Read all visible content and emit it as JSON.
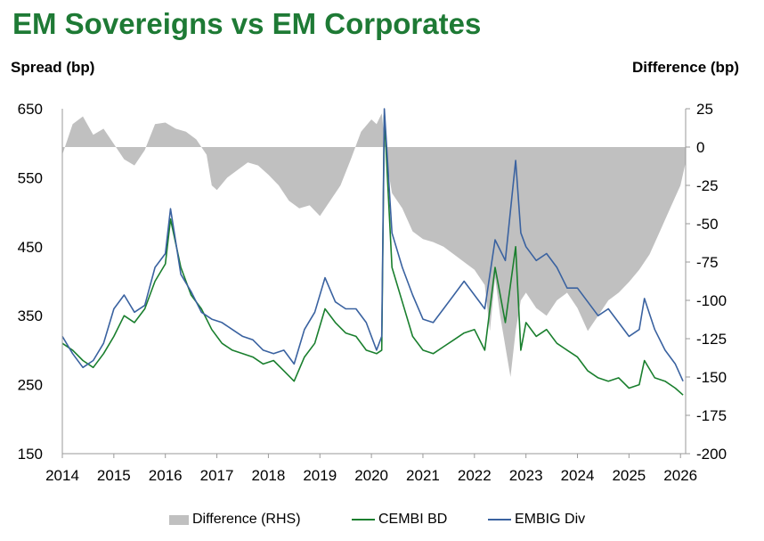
{
  "header": {
    "title": "EM Sovereigns vs EM Corporates",
    "left_axis_label": "Spread (bp)",
    "right_axis_label": "Difference (bp)"
  },
  "legend": {
    "items": [
      {
        "label": "Difference (RHS)",
        "color": "#c0c0c0",
        "kind": "bar"
      },
      {
        "label": "CEMBI BD",
        "color": "#1a7f2e",
        "kind": "line"
      },
      {
        "label": "EMBIG Div",
        "color": "#3a62a0",
        "kind": "line"
      }
    ]
  },
  "chart_data": {
    "type": "line",
    "x_ticks": [
      "2014",
      "2015",
      "2016",
      "2017",
      "2018",
      "2019",
      "2020",
      "2021",
      "2022",
      "2023",
      "2024",
      "2025",
      "2026"
    ],
    "xlim": [
      2014,
      2026.1
    ],
    "ylim_left": [
      150,
      650
    ],
    "yticks_left": [
      150,
      250,
      350,
      450,
      550,
      650
    ],
    "ylim_right": [
      -200,
      25
    ],
    "yticks_right": [
      -200,
      -175,
      -150,
      -125,
      -100,
      -75,
      -50,
      -25,
      0,
      25
    ],
    "series": [
      {
        "name": "CEMBI BD",
        "axis": "left",
        "color": "#1a7f2e",
        "x": [
          2014.0,
          2014.2,
          2014.4,
          2014.6,
          2014.8,
          2015.0,
          2015.2,
          2015.4,
          2015.6,
          2015.8,
          2016.0,
          2016.1,
          2016.3,
          2016.5,
          2016.7,
          2016.9,
          2017.1,
          2017.3,
          2017.5,
          2017.7,
          2017.9,
          2018.1,
          2018.3,
          2018.5,
          2018.7,
          2018.9,
          2019.1,
          2019.3,
          2019.5,
          2019.7,
          2019.9,
          2020.1,
          2020.2,
          2020.25,
          2020.4,
          2020.6,
          2020.8,
          2021.0,
          2021.2,
          2021.4,
          2021.6,
          2021.8,
          2022.0,
          2022.2,
          2022.4,
          2022.6,
          2022.8,
          2022.9,
          2023.0,
          2023.2,
          2023.4,
          2023.6,
          2023.8,
          2024.0,
          2024.2,
          2024.4,
          2024.6,
          2024.8,
          2025.0,
          2025.2,
          2025.3,
          2025.5,
          2025.7,
          2025.9,
          2026.05
        ],
        "values": [
          310,
          300,
          285,
          275,
          295,
          320,
          350,
          340,
          360,
          400,
          425,
          490,
          420,
          380,
          360,
          330,
          310,
          300,
          295,
          290,
          280,
          285,
          270,
          255,
          290,
          310,
          360,
          340,
          325,
          320,
          300,
          295,
          300,
          640,
          420,
          370,
          320,
          300,
          295,
          305,
          315,
          325,
          330,
          300,
          420,
          340,
          450,
          300,
          340,
          320,
          330,
          310,
          300,
          290,
          270,
          260,
          255,
          260,
          245,
          250,
          285,
          260,
          255,
          245,
          235
        ],
        "note_x": "x values are years"
      },
      {
        "name": "EMBIG Div",
        "axis": "left",
        "color": "#3a62a0",
        "x": [
          2014.0,
          2014.2,
          2014.4,
          2014.6,
          2014.8,
          2015.0,
          2015.2,
          2015.4,
          2015.6,
          2015.8,
          2016.0,
          2016.1,
          2016.3,
          2016.5,
          2016.7,
          2016.9,
          2017.1,
          2017.3,
          2017.5,
          2017.7,
          2017.9,
          2018.1,
          2018.3,
          2018.5,
          2018.7,
          2018.9,
          2019.1,
          2019.3,
          2019.5,
          2019.7,
          2019.9,
          2020.1,
          2020.2,
          2020.25,
          2020.4,
          2020.6,
          2020.8,
          2021.0,
          2021.2,
          2021.4,
          2021.6,
          2021.8,
          2022.0,
          2022.2,
          2022.4,
          2022.6,
          2022.8,
          2022.9,
          2023.0,
          2023.2,
          2023.4,
          2023.6,
          2023.8,
          2024.0,
          2024.2,
          2024.4,
          2024.6,
          2024.8,
          2025.0,
          2025.2,
          2025.3,
          2025.5,
          2025.7,
          2025.9,
          2026.05
        ],
        "values": [
          320,
          295,
          275,
          285,
          310,
          360,
          380,
          355,
          365,
          420,
          440,
          505,
          410,
          385,
          355,
          345,
          340,
          330,
          320,
          315,
          300,
          295,
          300,
          280,
          330,
          355,
          405,
          370,
          360,
          360,
          340,
          300,
          320,
          650,
          470,
          420,
          380,
          345,
          340,
          360,
          380,
          400,
          380,
          360,
          460,
          430,
          575,
          470,
          450,
          430,
          440,
          420,
          390,
          390,
          370,
          350,
          360,
          340,
          320,
          330,
          375,
          330,
          300,
          280,
          255
        ]
      },
      {
        "name": "Difference (RHS)",
        "axis": "right",
        "type": "area",
        "color": "#c0c0c0",
        "x": [
          2014.0,
          2014.2,
          2014.4,
          2014.6,
          2014.8,
          2015.0,
          2015.2,
          2015.4,
          2015.6,
          2015.8,
          2016.0,
          2016.2,
          2016.4,
          2016.6,
          2016.8,
          2016.9,
          2017.0,
          2017.2,
          2017.4,
          2017.6,
          2017.8,
          2018.0,
          2018.2,
          2018.4,
          2018.6,
          2018.8,
          2019.0,
          2019.2,
          2019.4,
          2019.6,
          2019.8,
          2020.0,
          2020.1,
          2020.2,
          2020.3,
          2020.4,
          2020.6,
          2020.8,
          2021.0,
          2021.2,
          2021.4,
          2021.6,
          2021.8,
          2022.0,
          2022.2,
          2022.3,
          2022.4,
          2022.5,
          2022.6,
          2022.7,
          2022.8,
          2022.9,
          2023.0,
          2023.2,
          2023.4,
          2023.6,
          2023.8,
          2024.0,
          2024.2,
          2024.4,
          2024.6,
          2024.8,
          2025.0,
          2025.2,
          2025.4,
          2025.6,
          2025.8,
          2026.0,
          2026.1
        ],
        "values": [
          -5,
          15,
          20,
          8,
          12,
          2,
          -8,
          -12,
          -2,
          15,
          16,
          12,
          10,
          5,
          -5,
          -25,
          -28,
          -20,
          -15,
          -10,
          -12,
          -18,
          -25,
          -35,
          -40,
          -38,
          -45,
          -35,
          -25,
          -8,
          10,
          18,
          15,
          22,
          -10,
          -30,
          -40,
          -55,
          -60,
          -62,
          -65,
          -70,
          -75,
          -80,
          -90,
          -120,
          -85,
          -110,
          -130,
          -150,
          -120,
          -100,
          -95,
          -105,
          -110,
          -100,
          -95,
          -105,
          -120,
          -110,
          -100,
          -95,
          -88,
          -80,
          -70,
          -55,
          -40,
          -25,
          -10
        ]
      }
    ],
    "grid": false,
    "legend_position": "bottom"
  }
}
